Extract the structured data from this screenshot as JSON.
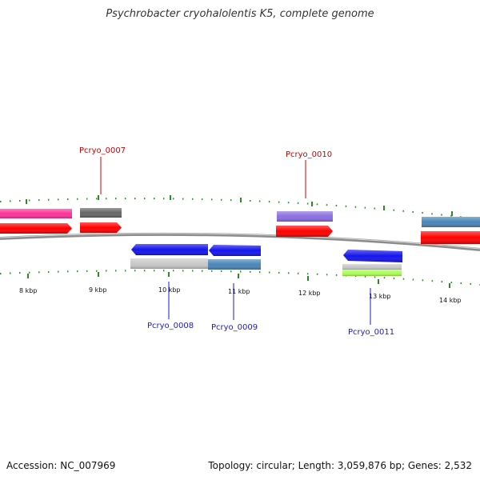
{
  "title": "Psychrobacter cryohalolentis K5, complete genome",
  "footer": {
    "accession": "Accession: NC_007969",
    "summary": "Topology: circular; Length: 3,059,876 bp; Genes: 2,532"
  },
  "colors": {
    "backbone": "#8c8c8c",
    "tick": "#2a8a2a",
    "forward_label": "#cc0000",
    "reverse_label": "#1a1acc",
    "cds": "#ff0000",
    "magenta": "#ff3399",
    "darkgray": "#666666",
    "purple": "#8a6ee0",
    "steelblue": "#4a86b8",
    "blue": "#1414ee",
    "lightgray": "#c8c8c8",
    "green": "#aaff55"
  },
  "tick_labels": [
    "8 kbp",
    "9 kbp",
    "10 kbp",
    "11 kbp",
    "12 kbp",
    "13 kbp",
    "14 kbp"
  ],
  "gene_labels": {
    "forward": [
      "Pcryo_0007",
      "Pcryo_0010"
    ],
    "reverse": [
      "Pcryo_0008",
      "Pcryo_0009",
      "Pcryo_0011"
    ]
  }
}
